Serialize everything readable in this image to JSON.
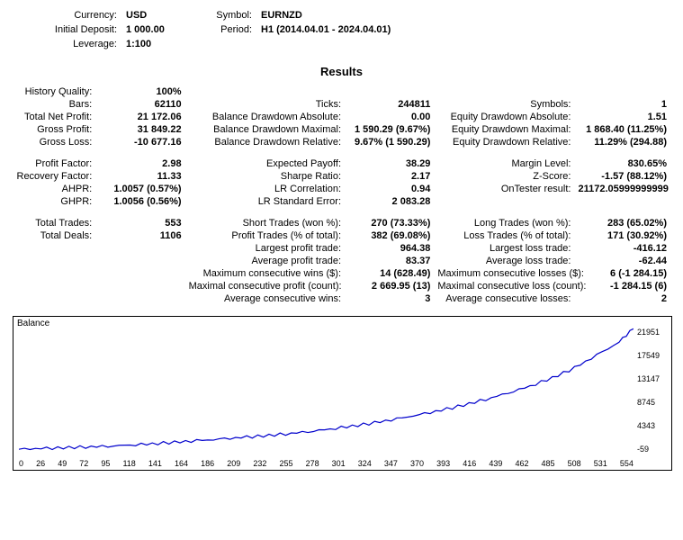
{
  "header": {
    "currency_lbl": "Currency:",
    "currency": "USD",
    "symbol_lbl": "Symbol:",
    "symbol": "EURNZD",
    "deposit_lbl": "Initial Deposit:",
    "deposit": "1 000.00",
    "period_lbl": "Period:",
    "period": "H1 (2014.04.01 - 2024.04.01)",
    "leverage_lbl": "Leverage:",
    "leverage": "1:100"
  },
  "title": "Results",
  "rows": [
    {
      "c1l": "History Quality:",
      "c1v": "100%",
      "c2l": "",
      "c2v": "",
      "c3l": "",
      "c3v": ""
    },
    {
      "c1l": "Bars:",
      "c1v": "62110",
      "c2l": "Ticks:",
      "c2v": "244811",
      "c3l": "Symbols:",
      "c3v": "1"
    },
    {
      "c1l": "Total Net Profit:",
      "c1v": "21 172.06",
      "c2l": "Balance Drawdown Absolute:",
      "c2v": "0.00",
      "c3l": "Equity Drawdown Absolute:",
      "c3v": "1.51"
    },
    {
      "c1l": "Gross Profit:",
      "c1v": "31 849.22",
      "c2l": "Balance Drawdown Maximal:",
      "c2v": "1 590.29 (9.67%)",
      "c3l": "Equity Drawdown Maximal:",
      "c3v": "1 868.40 (11.25%)"
    },
    {
      "c1l": "Gross Loss:",
      "c1v": "-10 677.16",
      "c2l": "Balance Drawdown Relative:",
      "c2v": "9.67% (1 590.29)",
      "c3l": "Equity Drawdown Relative:",
      "c3v": "11.29% (294.88)"
    },
    {
      "spacer": true
    },
    {
      "c1l": "Profit Factor:",
      "c1v": "2.98",
      "c2l": "Expected Payoff:",
      "c2v": "38.29",
      "c3l": "Margin Level:",
      "c3v": "830.65%"
    },
    {
      "c1l": "Recovery Factor:",
      "c1v": "11.33",
      "c2l": "Sharpe Ratio:",
      "c2v": "2.17",
      "c3l": "Z-Score:",
      "c3v": "-1.57 (88.12%)"
    },
    {
      "c1l": "AHPR:",
      "c1v": "1.0057 (0.57%)",
      "c2l": "LR Correlation:",
      "c2v": "0.94",
      "c3l": "OnTester result:",
      "c3v": "21172.05999999999"
    },
    {
      "c1l": "GHPR:",
      "c1v": "1.0056 (0.56%)",
      "c2l": "LR Standard Error:",
      "c2v": "2 083.28",
      "c3l": "",
      "c3v": ""
    },
    {
      "spacer": true
    },
    {
      "c1l": "Total Trades:",
      "c1v": "553",
      "c2l": "Short Trades (won %):",
      "c2v": "270 (73.33%)",
      "c3l": "Long Trades (won %):",
      "c3v": "283 (65.02%)"
    },
    {
      "c1l": "Total Deals:",
      "c1v": "1106",
      "c2l": "Profit Trades (% of total):",
      "c2v": "382 (69.08%)",
      "c3l": "Loss Trades (% of total):",
      "c3v": "171 (30.92%)"
    },
    {
      "c1l": "",
      "c1v": "",
      "c2l": "Largest profit trade:",
      "c2v": "964.38",
      "c3l": "Largest loss trade:",
      "c3v": "-416.12"
    },
    {
      "c1l": "",
      "c1v": "",
      "c2l": "Average profit trade:",
      "c2v": "83.37",
      "c3l": "Average loss trade:",
      "c3v": "-62.44"
    },
    {
      "c1l": "",
      "c1v": "",
      "c2l": "Maximum consecutive wins ($):",
      "c2v": "14 (628.49)",
      "c3l": "Maximum consecutive losses ($):",
      "c3v": "6 (-1 284.15)"
    },
    {
      "c1l": "",
      "c1v": "",
      "c2l": "Maximal consecutive profit (count):",
      "c2v": "2 669.95 (13)",
      "c3l": "Maximal consecutive loss (count):",
      "c3v": "-1 284.15 (6)"
    },
    {
      "c1l": "",
      "c1v": "",
      "c2l": "Average consecutive wins:",
      "c2v": "3",
      "c3l": "Average consecutive losses:",
      "c3v": "2"
    }
  ],
  "chart": {
    "label": "Balance",
    "line_color": "#0000cc",
    "bg_color": "#ffffff",
    "border_color": "#000000",
    "ylim": [
      -59,
      21951
    ],
    "y_ticks": [
      "21951",
      "17549",
      "13147",
      "8745",
      "4343",
      "-59"
    ],
    "x_ticks": [
      "0",
      "26",
      "49",
      "72",
      "95",
      "118",
      "141",
      "164",
      "186",
      "209",
      "232",
      "255",
      "278",
      "301",
      "324",
      "347",
      "370",
      "393",
      "416",
      "439",
      "462",
      "485",
      "508",
      "531",
      "554"
    ],
    "points": [
      [
        0,
        1000
      ],
      [
        20,
        1100
      ],
      [
        40,
        1250
      ],
      [
        60,
        1400
      ],
      [
        80,
        1550
      ],
      [
        100,
        1750
      ],
      [
        120,
        1950
      ],
      [
        140,
        2200
      ],
      [
        160,
        2450
      ],
      [
        180,
        2700
      ],
      [
        200,
        3000
      ],
      [
        220,
        3300
      ],
      [
        240,
        3650
      ],
      [
        260,
        4050
      ],
      [
        280,
        4500
      ],
      [
        300,
        5000
      ],
      [
        320,
        5550
      ],
      [
        340,
        6200
      ],
      [
        360,
        6900
      ],
      [
        380,
        7700
      ],
      [
        400,
        8600
      ],
      [
        420,
        9600
      ],
      [
        440,
        10700
      ],
      [
        460,
        11900
      ],
      [
        480,
        13300
      ],
      [
        500,
        15000
      ],
      [
        520,
        17200
      ],
      [
        540,
        19400
      ],
      [
        553,
        21900
      ]
    ],
    "xmax": 553
  }
}
